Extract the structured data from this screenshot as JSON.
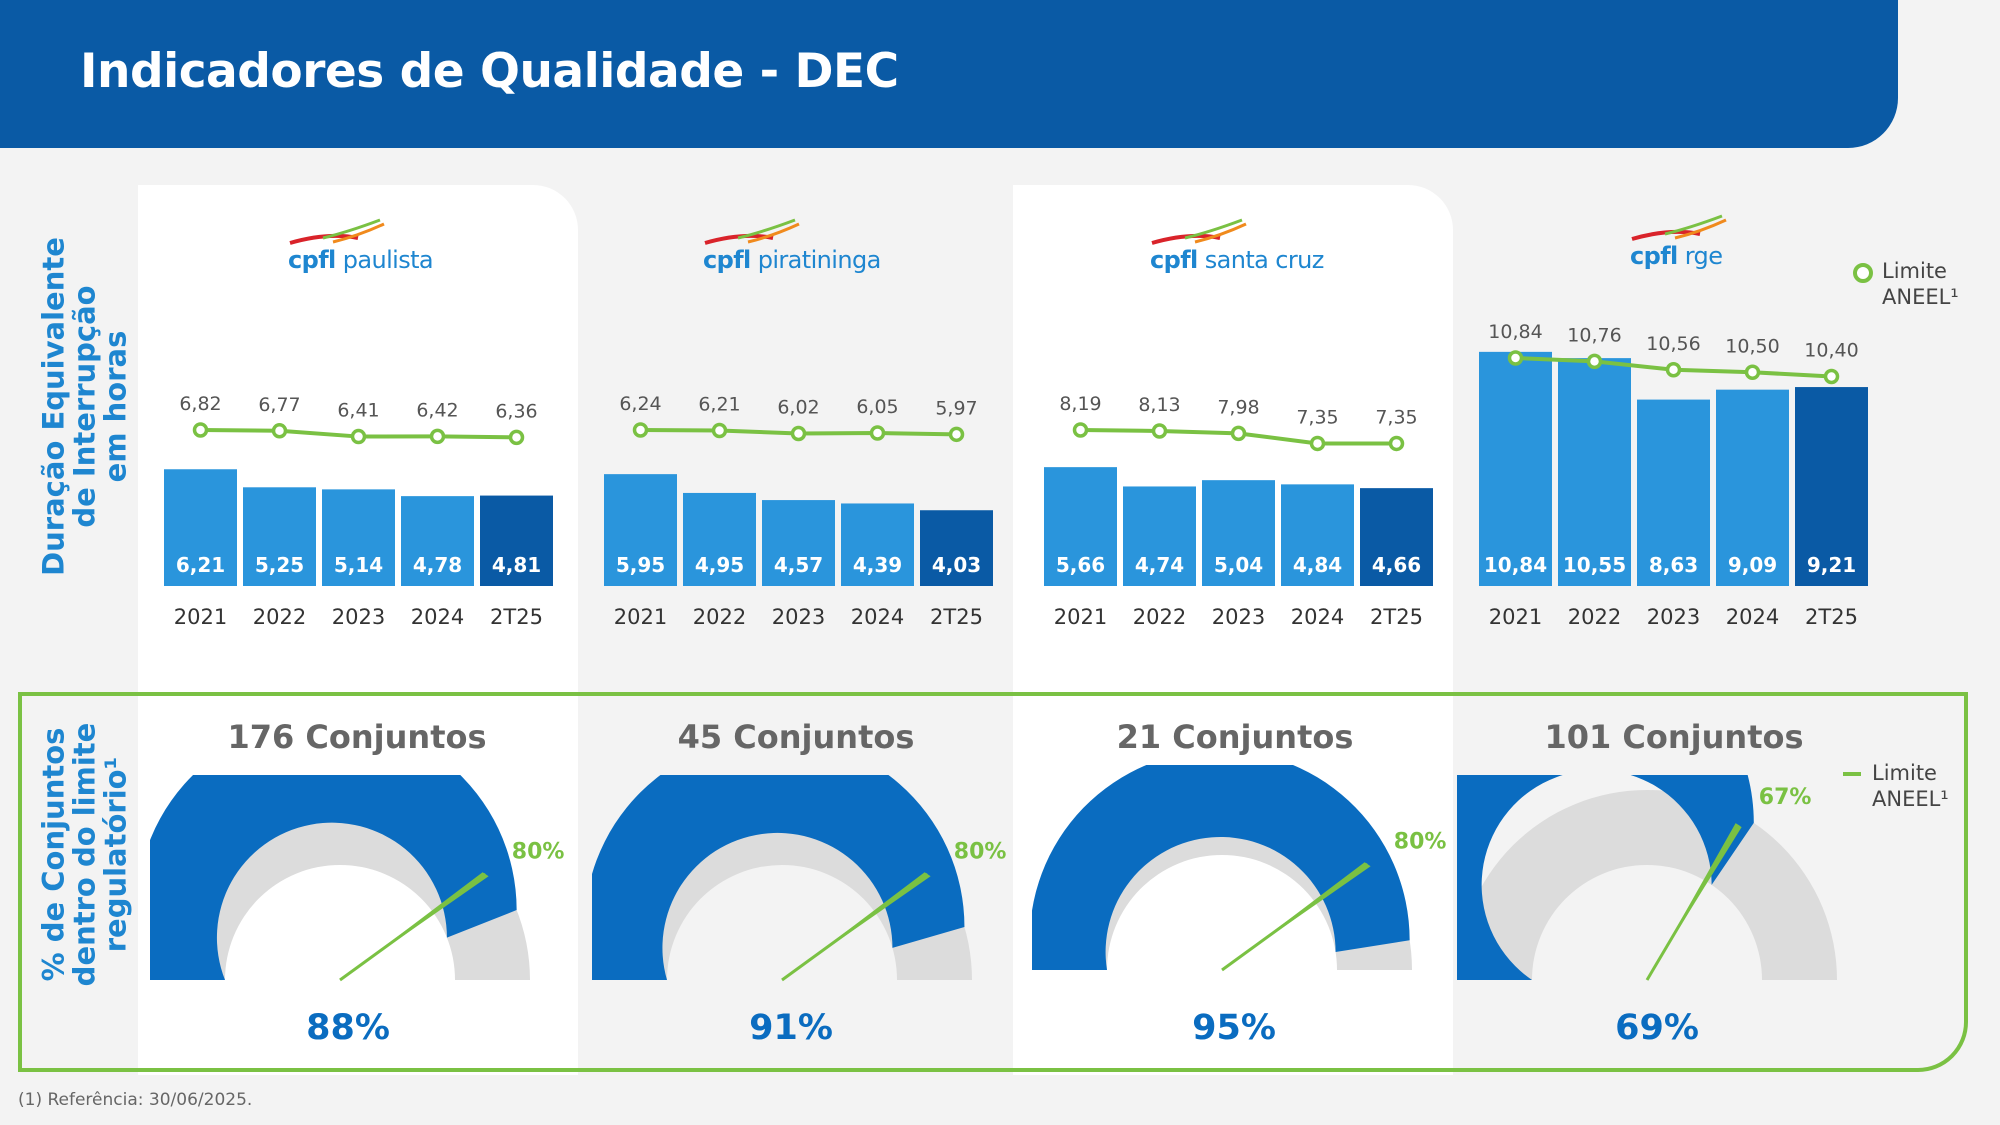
{
  "title": "Indicadores de Qualidade - DEC",
  "side_labels": {
    "top": [
      "Duração Equivalente",
      "de Interrupção",
      "em horas"
    ],
    "bottom": [
      "% de Conjuntos",
      "dentro do limite",
      "regulatório¹"
    ]
  },
  "legend": {
    "limit_line1": "Limite",
    "limit_line2": "ANEEL¹"
  },
  "footnote": "(1)  Referência: 30/06/2025.",
  "colors": {
    "header": "#0a5aa5",
    "bar": "#2a95dc",
    "bar_last": "#0a5aa5",
    "limit": "#7ac143",
    "gauge": "#0a6cc0",
    "gauge_rest": "#dcdcdc",
    "side_label": "#1e86d0"
  },
  "companies": [
    {
      "logo_bold": "cpfl",
      "logo_rest": " paulista",
      "conjuntos": "176 Conjuntos",
      "gauge_pct": "88%",
      "gauge_value": 0.88,
      "limit_pct": "80%",
      "limit_value": 0.8
    },
    {
      "logo_bold": "cpfl",
      "logo_rest": " piratininga",
      "conjuntos": "45 Conjuntos",
      "gauge_pct": "91%",
      "gauge_value": 0.91,
      "limit_pct": "80%",
      "limit_value": 0.8
    },
    {
      "logo_bold": "cpfl",
      "logo_rest": " santa cruz",
      "conjuntos": "21 Conjuntos",
      "gauge_pct": "95%",
      "gauge_value": 0.95,
      "limit_pct": "80%",
      "limit_value": 0.8
    },
    {
      "logo_bold": "cpfl",
      "logo_rest": " rge",
      "conjuntos": "101 Conjuntos",
      "gauge_pct": "69%",
      "gauge_value": 0.69,
      "limit_pct": "67%",
      "limit_value": 0.67
    }
  ],
  "chart_data": [
    {
      "type": "bar",
      "company": "cpfl paulista",
      "categories": [
        "2021",
        "2022",
        "2023",
        "2024",
        "2T25"
      ],
      "series": [
        {
          "values": [
            6.21,
            5.25,
            5.14,
            4.78,
            4.81
          ],
          "labels": [
            "6,21",
            "5,25",
            "5,14",
            "4,78",
            "4,81"
          ]
        },
        {
          "name": "Limite ANEEL¹",
          "type": "line",
          "values": [
            6.82,
            6.77,
            6.41,
            6.42,
            6.36
          ],
          "labels": [
            "6,82",
            "6,77",
            "6,41",
            "6,42",
            "6,36"
          ]
        }
      ]
    },
    {
      "type": "bar",
      "company": "cpfl piratininga",
      "categories": [
        "2021",
        "2022",
        "2023",
        "2024",
        "2T25"
      ],
      "series": [
        {
          "values": [
            5.95,
            4.95,
            4.57,
            4.39,
            4.03
          ],
          "labels": [
            "5,95",
            "4,95",
            "4,57",
            "4,39",
            "4,03"
          ]
        },
        {
          "name": "Limite ANEEL¹",
          "type": "line",
          "values": [
            6.24,
            6.21,
            6.02,
            6.05,
            5.97
          ],
          "labels": [
            "6,24",
            "6,21",
            "6,02",
            "6,05",
            "5,97"
          ]
        }
      ]
    },
    {
      "type": "bar",
      "company": "cpfl santa cruz",
      "categories": [
        "2021",
        "2022",
        "2023",
        "2024",
        "2T25"
      ],
      "series": [
        {
          "values": [
            5.66,
            4.74,
            5.04,
            4.84,
            4.66
          ],
          "labels": [
            "5,66",
            "4,74",
            "5,04",
            "4,84",
            "4,66"
          ]
        },
        {
          "name": "Limite ANEEL¹",
          "type": "line",
          "values": [
            8.19,
            8.13,
            7.98,
            7.35,
            7.35
          ],
          "labels": [
            "8,19",
            "8,13",
            "7,98",
            "7,35",
            "7,35"
          ]
        }
      ]
    },
    {
      "type": "bar",
      "company": "cpfl rge",
      "categories": [
        "2021",
        "2022",
        "2023",
        "2024",
        "2T25"
      ],
      "series": [
        {
          "values": [
            10.84,
            10.55,
            8.63,
            9.09,
            9.21
          ],
          "labels": [
            "10,84",
            "10,55",
            "8,63",
            "9,09",
            "9,21"
          ]
        },
        {
          "name": "Limite ANEEL¹",
          "type": "line",
          "values": [
            10.84,
            10.76,
            10.56,
            10.5,
            10.4
          ],
          "labels": [
            "10,84",
            "10,76",
            "10,56",
            "10,50",
            "10,40"
          ]
        }
      ]
    }
  ]
}
